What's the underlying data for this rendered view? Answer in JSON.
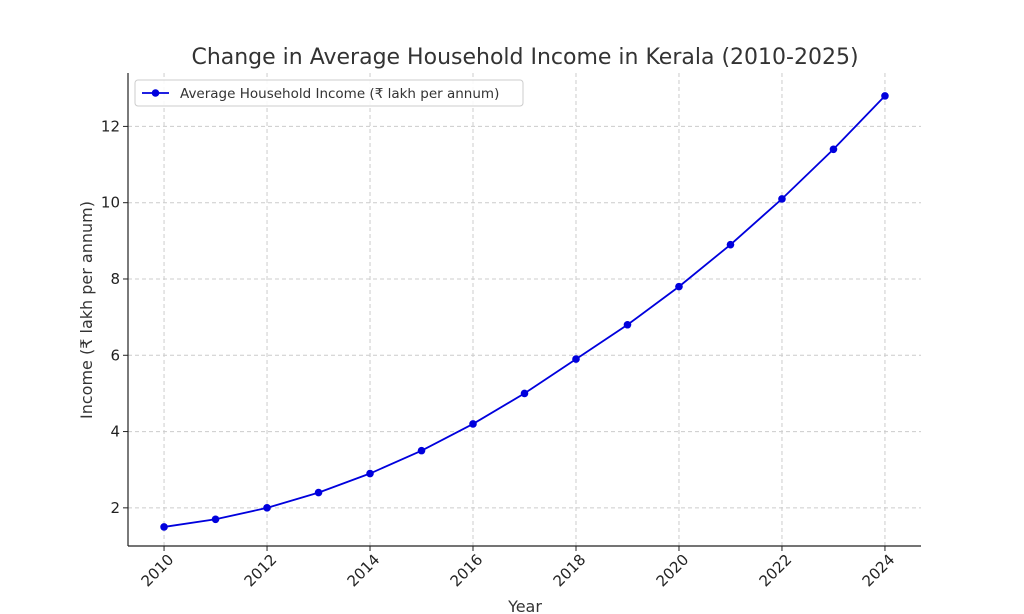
{
  "chart_data": {
    "type": "line",
    "title": "Change in Average Household Income in Kerala (2010-2025)",
    "xlabel": "Year",
    "ylabel": "Income (₹ lakh per annum)",
    "xlim": [
      2009.3,
      2024.7
    ],
    "ylim": [
      1.0,
      13.4
    ],
    "xticks": [
      2010,
      2012,
      2014,
      2016,
      2018,
      2020,
      2022,
      2024
    ],
    "yticks": [
      2,
      4,
      6,
      8,
      10,
      12
    ],
    "grid": true,
    "legend_position": "top-left",
    "series": [
      {
        "name": "Average Household Income (₹ lakh per annum)",
        "color": "#0000dd",
        "marker": "circle",
        "x": [
          2010,
          2011,
          2012,
          2013,
          2014,
          2015,
          2016,
          2017,
          2018,
          2019,
          2020,
          2021,
          2022,
          2023,
          2024
        ],
        "y": [
          1.5,
          1.7,
          2.0,
          2.4,
          2.9,
          3.5,
          4.2,
          5.0,
          5.9,
          6.8,
          7.8,
          8.9,
          10.1,
          11.4,
          12.8
        ]
      }
    ]
  }
}
